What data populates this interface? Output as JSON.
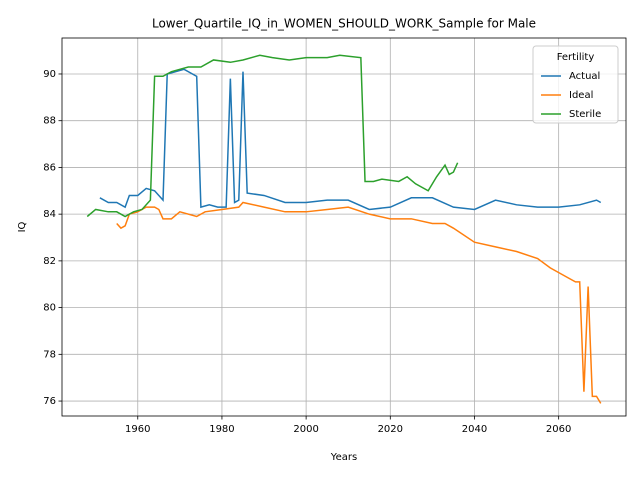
{
  "chart_data": {
    "type": "line",
    "title": "Lower_Quartile_IQ_in_WOMEN_SHOULD_WORK_Sample for Male",
    "x_label": "Years",
    "y_label": "IQ",
    "legend_title": "Fertility",
    "legend": "upper right",
    "grid": true,
    "xlim": [
      1942,
      2076
    ],
    "xticks": [
      1960,
      1980,
      2000,
      2020,
      2040,
      2060
    ],
    "ylim": [
      75.36,
      91.54
    ],
    "yticks": [
      76,
      78,
      80,
      82,
      84,
      86,
      88,
      90
    ],
    "series": [
      {
        "name": "Actual",
        "color": "#1f77b4",
        "x": [
          1951,
          1953,
          1955,
          1957,
          1958,
          1960,
          1962,
          1964,
          1966,
          1967,
          1969,
          1971,
          1973,
          1974,
          1975,
          1977,
          1979,
          1981,
          1982,
          1983,
          1984,
          1985,
          1986,
          1990,
          1995,
          2000,
          2005,
          2010,
          2015,
          2020,
          2025,
          2030,
          2035,
          2040,
          2045,
          2050,
          2055,
          2060,
          2065,
          2069,
          2070
        ],
        "values": [
          84.7,
          84.5,
          84.5,
          84.3,
          84.8,
          84.8,
          85.1,
          85.0,
          84.6,
          90.0,
          90.1,
          90.2,
          90.0,
          89.9,
          84.3,
          84.4,
          84.3,
          84.3,
          89.8,
          84.5,
          84.6,
          90.1,
          84.9,
          84.8,
          84.5,
          84.5,
          84.6,
          84.6,
          84.2,
          84.3,
          84.7,
          84.7,
          84.3,
          84.2,
          84.6,
          84.4,
          84.3,
          84.3,
          84.4,
          84.6,
          84.5
        ]
      },
      {
        "name": "Ideal",
        "color": "#ff7f0e",
        "x": [
          1955,
          1956,
          1957,
          1958,
          1960,
          1962,
          1964,
          1965,
          1966,
          1968,
          1970,
          1974,
          1976,
          1980,
          1984,
          1985,
          1990,
          1995,
          2000,
          2005,
          2010,
          2015,
          2020,
          2025,
          2030,
          2033,
          2035,
          2040,
          2045,
          2050,
          2055,
          2058,
          2062,
          2064,
          2065,
          2066,
          2067,
          2068,
          2069,
          2070
        ],
        "values": [
          83.6,
          83.4,
          83.5,
          84.0,
          84.1,
          84.3,
          84.3,
          84.2,
          83.8,
          83.8,
          84.1,
          83.9,
          84.1,
          84.2,
          84.3,
          84.5,
          84.3,
          84.1,
          84.1,
          84.2,
          84.3,
          84.0,
          83.8,
          83.8,
          83.6,
          83.6,
          83.4,
          82.8,
          82.6,
          82.4,
          82.1,
          81.7,
          81.3,
          81.1,
          81.1,
          76.4,
          80.9,
          76.2,
          76.2,
          75.9
        ]
      },
      {
        "name": "Sterile",
        "color": "#2ca02c",
        "x": [
          1948,
          1950,
          1953,
          1955,
          1957,
          1959,
          1961,
          1963,
          1964,
          1966,
          1968,
          1970,
          1972,
          1975,
          1978,
          1982,
          1985,
          1989,
          1992,
          1996,
          2000,
          2005,
          2008,
          2013,
          2014,
          2016,
          2018,
          2022,
          2024,
          2026,
          2029,
          2031,
          2033,
          2034,
          2035,
          2036
        ],
        "values": [
          83.9,
          84.2,
          84.1,
          84.1,
          83.9,
          84.1,
          84.2,
          84.6,
          89.9,
          89.9,
          90.1,
          90.2,
          90.3,
          90.3,
          90.6,
          90.5,
          90.6,
          90.8,
          90.7,
          90.6,
          90.7,
          90.7,
          90.8,
          90.7,
          85.4,
          85.4,
          85.5,
          85.4,
          85.6,
          85.3,
          85.0,
          85.6,
          86.1,
          85.7,
          85.8,
          86.2
        ]
      }
    ]
  }
}
